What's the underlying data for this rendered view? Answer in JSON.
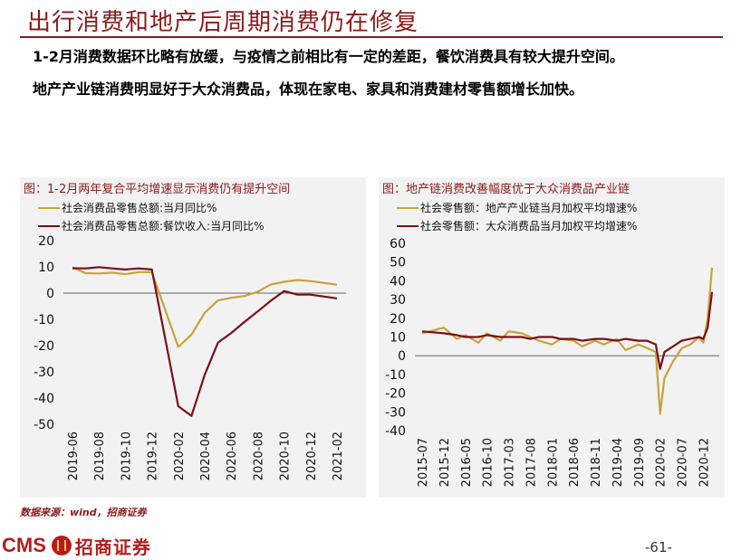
{
  "header": {
    "title": "出行消费和地产后周期消费仍在修复",
    "bullets": [
      "1-2月消费数据环比略有放缓，与疫情之前相比有一定的差距，餐饮消费具有较大提升空间。",
      "地产产业链消费明显好于大众消费品，体现在家电、家具和消费建材零售额增长加快。"
    ]
  },
  "colors": {
    "gold": "#C9A23A",
    "maroon": "#7B0F14",
    "brand": "#B71C1C"
  },
  "chart_data": [
    {
      "type": "line",
      "title": "图：1-2月两年复合平均增速显示消费仍有提升空间",
      "legend_position": "top",
      "ylim": [
        -50,
        20
      ],
      "yticks": [
        20,
        10,
        0,
        -10,
        -20,
        -30,
        -40,
        -50
      ],
      "x_ticks": [
        "2019-06",
        "2019-08",
        "2019-10",
        "2019-12",
        "2020-02",
        "2020-04",
        "2020-06",
        "2020-08",
        "2020-10",
        "2020-12",
        "2021-02"
      ],
      "x": [
        "2019-06",
        "2019-07",
        "2019-08",
        "2019-09",
        "2019-10",
        "2019-11",
        "2019-12",
        "2020-02",
        "2020-03",
        "2020-04",
        "2020-05",
        "2020-06",
        "2020-07",
        "2020-08",
        "2020-09",
        "2020-10",
        "2020-11",
        "2020-12",
        "2021-02"
      ],
      "series": [
        {
          "name": "社会消费品零售总额:当月同比%",
          "color": "gold",
          "values": [
            9.8,
            7.6,
            7.5,
            7.8,
            7.2,
            8.0,
            8.0,
            -20.5,
            -15.8,
            -7.5,
            -2.8,
            -1.8,
            -1.1,
            0.5,
            3.3,
            4.3,
            5.0,
            4.6,
            3.2
          ]
        },
        {
          "name": "社会消费品零售总额:餐饮收入:当月同比%",
          "color": "maroon",
          "values": [
            9.5,
            9.4,
            9.9,
            9.4,
            9.0,
            9.4,
            9.0,
            -43.1,
            -46.8,
            -31.1,
            -18.9,
            -15.2,
            -11.0,
            -7.0,
            -2.9,
            0.8,
            -0.6,
            -0.6,
            -2.0
          ]
        }
      ]
    },
    {
      "type": "line",
      "title": "图：地产链消费改善幅度优于大众消费品产业链",
      "legend_position": "top",
      "ylim": [
        -40,
        60
      ],
      "yticks": [
        60,
        50,
        40,
        30,
        20,
        10,
        0,
        -10,
        -20,
        -30,
        -40
      ],
      "x_ticks": [
        "2015-07",
        "2015-12",
        "2016-05",
        "2016-10",
        "2017-03",
        "2017-08",
        "2018-01",
        "2018-06",
        "2018-11",
        "2019-04",
        "2019-09",
        "2020-02",
        "2020-07",
        "2020-12"
      ],
      "x": [
        "2015-07",
        "2015-12",
        "2016-03",
        "2016-05",
        "2016-08",
        "2016-10",
        "2017-01",
        "2017-03",
        "2017-06",
        "2017-08",
        "2017-10",
        "2018-01",
        "2018-03",
        "2018-06",
        "2018-08",
        "2018-11",
        "2019-01",
        "2019-04",
        "2019-06",
        "2019-09",
        "2019-11",
        "2020-01",
        "2020-02",
        "2020-03",
        "2020-05",
        "2020-07",
        "2020-09",
        "2020-11",
        "2020-12",
        "2021-01",
        "2021-02"
      ],
      "series": [
        {
          "name": "社会零售额：地产产业链当月加权平均增速%",
          "color": "gold",
          "values": [
            12,
            15,
            9,
            11,
            7,
            12,
            8,
            13,
            12,
            10,
            8,
            6,
            9,
            8,
            5,
            8,
            6,
            9,
            3,
            6,
            4,
            2,
            -31,
            -12,
            -3,
            4,
            6,
            10,
            7,
            20,
            47
          ]
        },
        {
          "name": "社会零售额：大众消费品当月加权平均增速%",
          "color": "maroon",
          "values": [
            13,
            12,
            11,
            10,
            10,
            11,
            10,
            10,
            10,
            9,
            10,
            10,
            9,
            9,
            8,
            9,
            9,
            8,
            9,
            8,
            8,
            6,
            -7,
            2,
            5,
            8,
            9,
            10,
            9,
            15,
            34
          ]
        }
      ]
    }
  ],
  "footer": {
    "source": "数据来源：wind，招商证券",
    "logo_latin": "CMS",
    "logo_cn": "招商证券",
    "page_number": "-61-"
  }
}
